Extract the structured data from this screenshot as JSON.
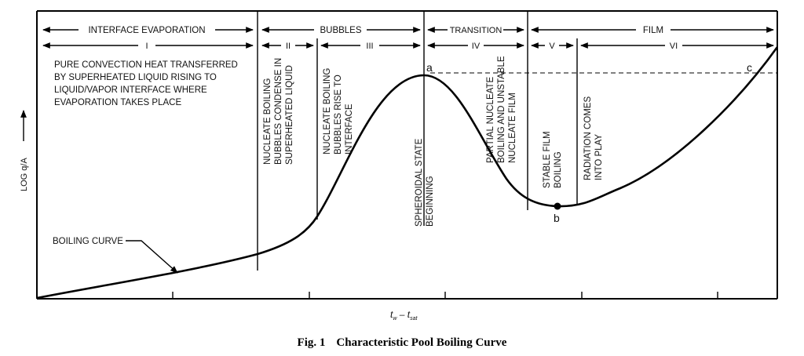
{
  "regimes": {
    "interface_evaporation": "INTERFACE EVAPORATION",
    "bubbles": "BUBBLES",
    "transition": "TRANSITION",
    "film": "FILM"
  },
  "zones": [
    "I",
    "II",
    "III",
    "IV",
    "V",
    "VI"
  ],
  "notes": {
    "zone_i_lines": [
      "PURE CONVECTION HEAT TRANSFERRED",
      "BY SUPERHEATED LIQUID RISING TO",
      "LIQUID/VAPOR INTERFACE WHERE",
      "EVAPORATION TAKES PLACE"
    ],
    "zone_ii_lines": [
      "NUCLEATE BOILING",
      "BUBBLES CONDENSE IN",
      "SUPERHEATED LIQUID"
    ],
    "zone_iii_lines": [
      "NUCLEATE BOILING",
      "BUBBLES RISE TO",
      "INTERFACE"
    ],
    "spheroidal_lines": [
      "SPHEROIDAL STATE",
      "BEGINNING"
    ],
    "zone_iv_lines": [
      "PARTIAL NUCLEATE",
      "BOILING AND UNSTABLE",
      "NUCLEATE FILM"
    ],
    "zone_v_lines": [
      "STABLE FILM",
      "BOILING"
    ],
    "zone_vi_lines": [
      "RADIATION COMES",
      "INTO PLAY"
    ]
  },
  "points": {
    "a": "a",
    "b": "b",
    "c": "c"
  },
  "curve_label": "BOILING CURVE",
  "axes": {
    "y_label": "LOG q/A",
    "x_label_main": "t",
    "x_sub_w": "w",
    "x_minus": " – t",
    "x_sub_sat": "sat"
  },
  "caption": {
    "number": "Fig. 1",
    "title": "Characteristic Pool Boiling Curve"
  }
}
